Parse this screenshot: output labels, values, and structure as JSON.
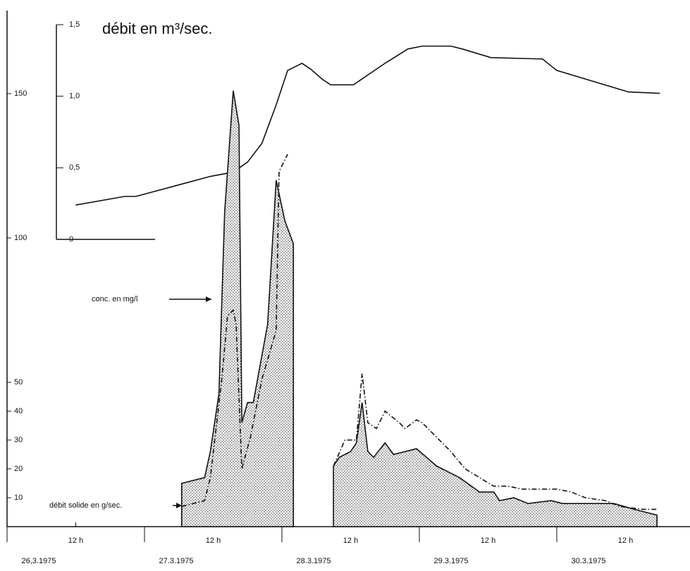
{
  "chart_data": {
    "type": "line",
    "xlim": [
      0,
      119
    ],
    "xticks": [
      {
        "value": 0,
        "label": "26,3.1975"
      },
      {
        "value": 12,
        "label": "12 h"
      },
      {
        "value": 24,
        "label": "27.3.1975"
      },
      {
        "value": 36,
        "label": "12 h"
      },
      {
        "value": 48,
        "label": "28.3.1975"
      },
      {
        "value": 60,
        "label": "12 h"
      },
      {
        "value": 72,
        "label": "29.3.1975"
      },
      {
        "value": 84,
        "label": "12 h"
      },
      {
        "value": 96,
        "label": "30.3.1975"
      },
      {
        "value": 108,
        "label": "12 h"
      }
    ],
    "ylim": [
      0,
      179
    ],
    "yticks": [
      10,
      20,
      30,
      40,
      50,
      100,
      150
    ],
    "y2lim": [
      0,
      1.5
    ],
    "y2ticks": [
      0,
      {
        "value": 0.5,
        "label": "0,5"
      },
      {
        "value": 1,
        "label": "1,0"
      },
      {
        "value": 1.5,
        "label": "1,5"
      }
    ],
    "series": [
      {
        "name": "débit en m³/sec.",
        "color": "#111",
        "style": "line",
        "axis": "y2",
        "x": [
          12,
          20.5,
          22.5,
          35.5,
          39.5,
          42,
          44.5,
          47,
          49,
          51.5,
          53,
          55,
          56.5,
          60.5,
          66,
          70,
          72.5,
          77.5,
          79.5,
          84.5,
          93.5,
          96,
          108.5,
          114
        ],
        "values": [
          0.24,
          0.3,
          0.3,
          0.44,
          0.47,
          0.54,
          0.67,
          0.94,
          1.18,
          1.23,
          1.19,
          1.12,
          1.08,
          1.08,
          1.23,
          1.33,
          1.35,
          1.35,
          1.33,
          1.27,
          1.26,
          1.18,
          1.03,
          1.02
        ]
      },
      {
        "name": "conc. en mg/l",
        "color": "#111",
        "style": "area",
        "x": [
          30.5,
          34.5,
          35.5,
          37,
          38,
          39.5,
          40.5,
          41,
          42,
          43,
          45.5,
          47,
          48.5,
          50,
          55,
          57,
          58,
          60,
          61,
          62,
          63,
          64,
          66,
          67.5,
          71.5,
          75,
          79,
          82.5,
          85,
          86,
          88.5,
          91,
          95,
          97,
          101,
          106,
          109.5,
          113.5
        ],
        "values": [
          15,
          17,
          26,
          46,
          109,
          151,
          139,
          36,
          43,
          43,
          70,
          120,
          106,
          98,
          null,
          21,
          24,
          26,
          29,
          43,
          26,
          24,
          29,
          25,
          27,
          21,
          17,
          12,
          12,
          9,
          10,
          8,
          9,
          8,
          8,
          8,
          6,
          4
        ]
      },
      {
        "name": "débit solide en g/sec.",
        "color": "#111",
        "style": "dashdot",
        "x": [
          30.5,
          34.5,
          35.5,
          37.5,
          38.5,
          39.5,
          40,
          41,
          42.5,
          44.5,
          47,
          47.5,
          49,
          55,
          57,
          59,
          61,
          62,
          63,
          64.5,
          66,
          68.5,
          69.5,
          71.5,
          72.5,
          75,
          77.5,
          80,
          82.5,
          85,
          87.5,
          90,
          92.5,
          96,
          98.5,
          101,
          104.5,
          107,
          111,
          113.5
        ],
        "values": [
          7,
          9,
          17,
          51,
          73,
          75,
          70,
          20,
          31,
          51,
          68,
          123,
          129,
          null,
          21,
          30,
          30,
          53,
          36,
          34,
          40,
          36,
          34,
          37,
          36,
          31,
          26,
          20,
          17,
          14,
          14,
          13,
          13,
          13,
          12,
          10,
          9,
          7,
          6,
          6
        ]
      }
    ]
  }
}
